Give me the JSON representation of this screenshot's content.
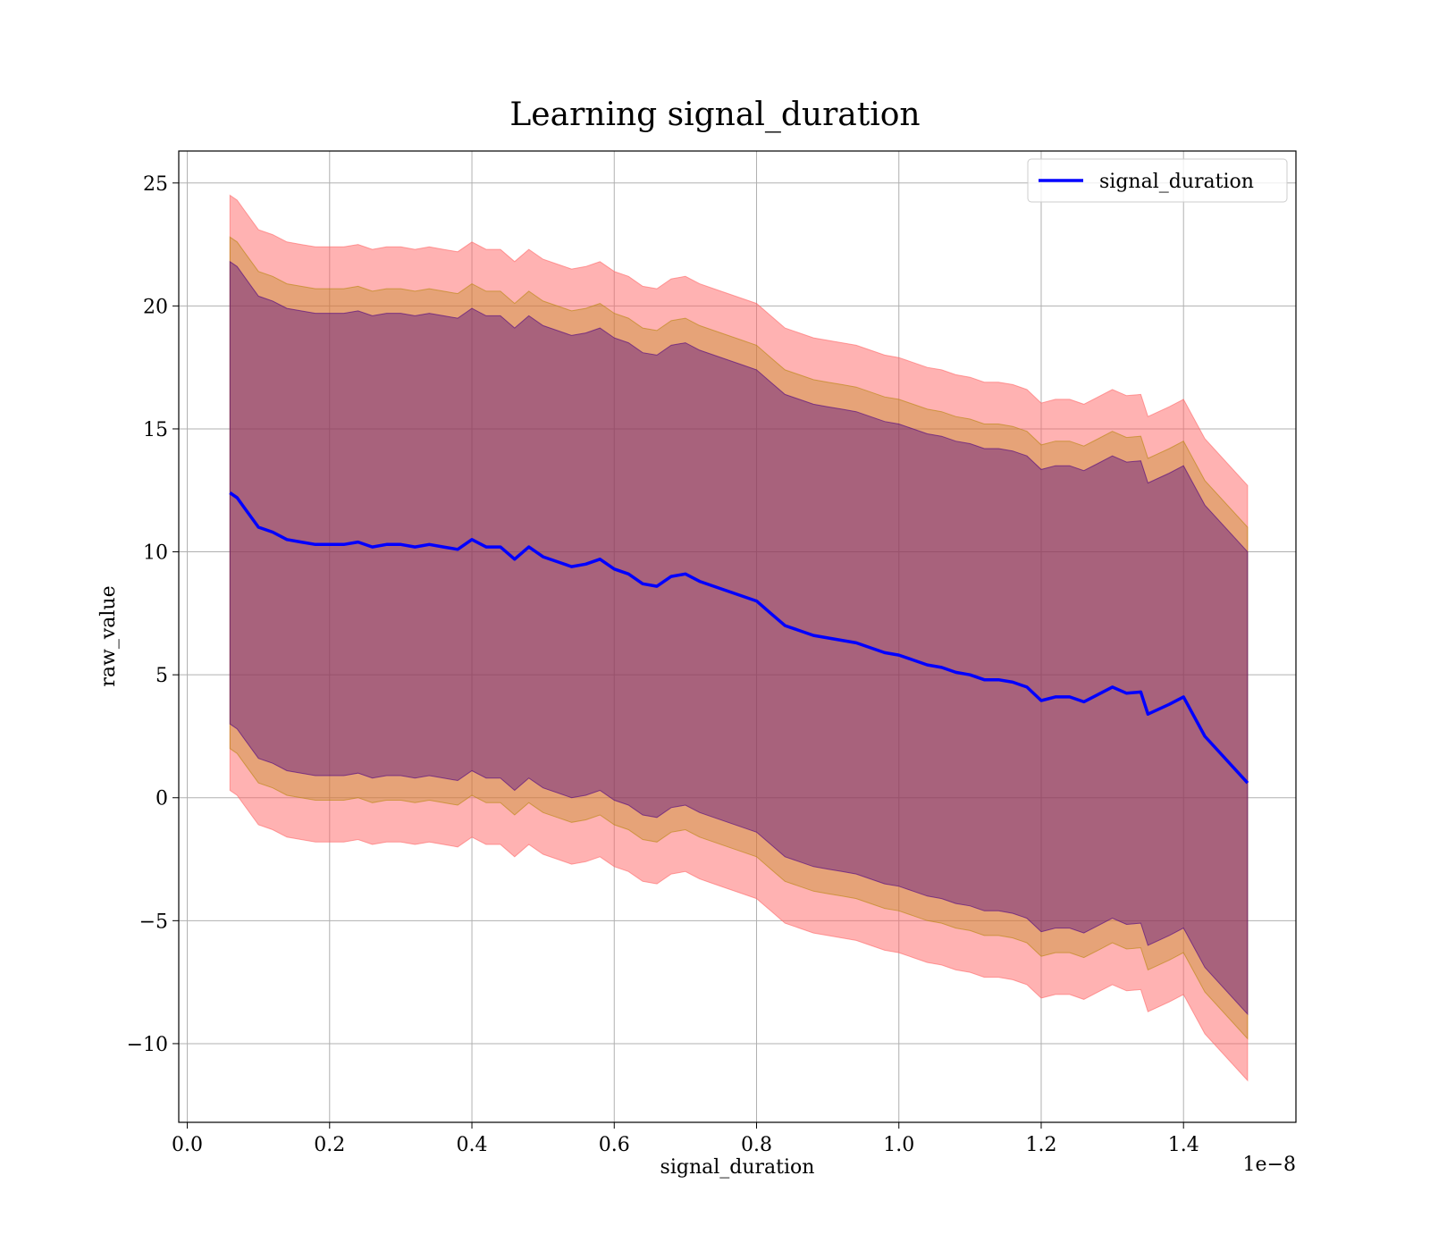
{
  "chart_data": {
    "type": "line",
    "title": "Learning signal_duration",
    "xlabel": "signal_duration",
    "ylabel": "raw_value",
    "x_offset_label": "1e−8",
    "xlim": [
      -0.012,
      1.558
    ],
    "ylim": [
      -13.2,
      26.3
    ],
    "x_ticks": [
      0.0,
      0.2,
      0.4,
      0.6,
      0.8,
      1.0,
      1.2,
      1.4
    ],
    "x_tick_labels": [
      "0.0",
      "0.2",
      "0.4",
      "0.6",
      "0.8",
      "1.0",
      "1.2",
      "1.4"
    ],
    "y_ticks": [
      -10,
      -5,
      0,
      5,
      10,
      15,
      20,
      25
    ],
    "y_tick_labels": [
      "−10",
      "−5",
      "0",
      "5",
      "10",
      "15",
      "20",
      "25"
    ],
    "grid": true,
    "legend_position": "top-right",
    "band_colors": {
      "outer": "#ff6666",
      "middle": "#b8860b",
      "inner": "#4b0082"
    },
    "line_color": "#0000ff",
    "series": [
      {
        "name": "signal_duration",
        "x": [
          0.06,
          0.07,
          0.08,
          0.09,
          0.1,
          0.12,
          0.14,
          0.16,
          0.18,
          0.2,
          0.22,
          0.24,
          0.26,
          0.28,
          0.3,
          0.32,
          0.34,
          0.36,
          0.38,
          0.4,
          0.42,
          0.44,
          0.46,
          0.48,
          0.5,
          0.52,
          0.54,
          0.56,
          0.58,
          0.6,
          0.62,
          0.64,
          0.66,
          0.68,
          0.7,
          0.72,
          0.74,
          0.76,
          0.78,
          0.8,
          0.82,
          0.84,
          0.86,
          0.88,
          0.9,
          0.92,
          0.94,
          0.96,
          0.98,
          1.0,
          1.02,
          1.04,
          1.06,
          1.08,
          1.1,
          1.12,
          1.14,
          1.16,
          1.18,
          1.2,
          1.22,
          1.24,
          1.26,
          1.28,
          1.3,
          1.32,
          1.34,
          1.35,
          1.38,
          1.4,
          1.43,
          1.49
        ],
        "y": [
          12.4,
          12.2,
          11.8,
          11.4,
          11.0,
          10.8,
          10.5,
          10.4,
          10.3,
          10.3,
          10.3,
          10.4,
          10.2,
          10.3,
          10.3,
          10.2,
          10.3,
          10.2,
          10.1,
          10.5,
          10.2,
          10.2,
          9.7,
          10.2,
          9.8,
          9.6,
          9.4,
          9.5,
          9.7,
          9.3,
          9.1,
          8.7,
          8.6,
          9.0,
          9.1,
          8.8,
          8.6,
          8.4,
          8.2,
          8.0,
          7.5,
          7.0,
          6.8,
          6.6,
          6.5,
          6.4,
          6.3,
          6.1,
          5.9,
          5.8,
          5.6,
          5.4,
          5.3,
          5.1,
          5.0,
          4.8,
          4.8,
          4.7,
          4.5,
          3.95,
          4.1,
          4.1,
          3.9,
          4.2,
          4.5,
          4.25,
          4.3,
          3.4,
          3.8,
          4.1,
          2.5,
          0.6
        ],
        "band_outer_halfwidth": 12.1,
        "band_middle_halfwidth": 10.4,
        "band_inner_halfwidth": 9.4
      }
    ]
  }
}
